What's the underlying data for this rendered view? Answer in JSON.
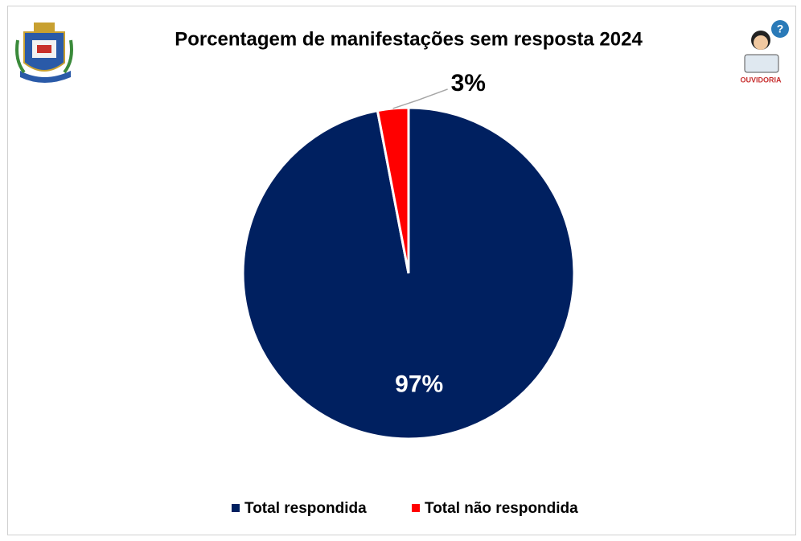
{
  "chart_data": {
    "type": "pie",
    "title": "Porcentagem de manifestações sem resposta 2024",
    "categories": [
      "Total respondida",
      "Total não respondida"
    ],
    "values": [
      97,
      3
    ],
    "value_labels": [
      "97%",
      "3%"
    ],
    "colors": [
      "#002060",
      "#ff0000"
    ],
    "legend": "bottom"
  },
  "logo_text": "OUVIDORIA"
}
